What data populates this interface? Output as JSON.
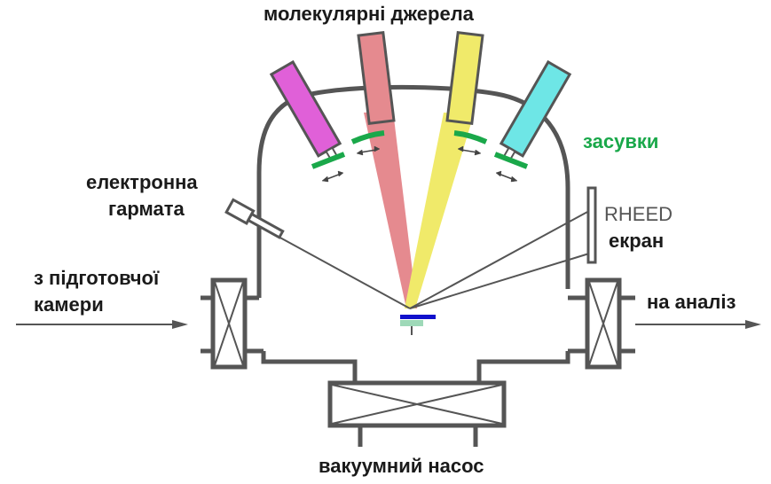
{
  "labels": {
    "sources": "молекулярні джерела",
    "shutters": "засувки",
    "gun_line1": "електронна",
    "gun_line2": "гармата",
    "rheed": "RHEED",
    "screen": "екран",
    "from_line1": "з підготовчої",
    "from_line2": "камери",
    "to_analysis": "на аналіз",
    "pump": "вакуумний насос"
  },
  "colors": {
    "outline": "#555555",
    "source_1": "#e060d8",
    "source_2": "#e58a8f",
    "source_3": "#f0ea6a",
    "source_4": "#6ee6e6",
    "shutter": "#1aa84a",
    "substrate": "#1010cc",
    "holder": "#9ed9b8",
    "shutters_text": "#1aa84a"
  },
  "icons": [
    "double-arrow-icon",
    "valve-cross-icon",
    "pump-cross-icon"
  ]
}
